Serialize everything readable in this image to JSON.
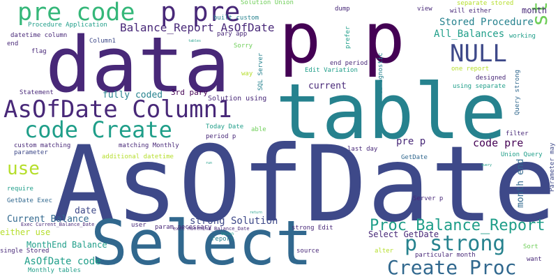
{
  "palette": {
    "dark_purple": "#440154",
    "indigo": "#482878",
    "blue": "#3e4989",
    "steel_blue": "#31688e",
    "teal_blue": "#26828e",
    "teal": "#1f9e89",
    "green": "#35b779",
    "light_green": "#6ece58",
    "lime": "#b5de2b",
    "yellow": "#fde725"
  },
  "words": [
    {
      "text": "AsOfDate",
      "tone": "blue"
    },
    {
      "text": "Select",
      "tone": "steel_blue"
    },
    {
      "text": "table",
      "tone": "teal_blue"
    },
    {
      "text": "data",
      "tone": "indigo"
    },
    {
      "text": "p p",
      "tone": "dark_purple"
    },
    {
      "text": "AsOfDate Column1",
      "tone": "indigo"
    },
    {
      "text": "p pre",
      "tone": "indigo"
    },
    {
      "text": "pre code",
      "tone": "green"
    },
    {
      "text": "code Create",
      "tone": "teal"
    },
    {
      "text": "Create Proc",
      "tone": "steel_blue"
    },
    {
      "text": "strong p",
      "tone": "light_green"
    },
    {
      "text": "p strong",
      "tone": "teal_blue"
    },
    {
      "text": "NULL",
      "tone": "blue"
    },
    {
      "text": "use",
      "tone": "lime"
    },
    {
      "text": "Proc Balance_Report",
      "tone": "teal"
    },
    {
      "text": "Balance_Report AsOfDate",
      "tone": "indigo"
    },
    {
      "text": "Stored Procedure",
      "tone": "teal_blue"
    },
    {
      "text": "All_Balances",
      "tone": "teal"
    },
    {
      "text": "AsOfDate code",
      "tone": "teal"
    },
    {
      "text": "Current Balance",
      "tone": "steel_blue"
    },
    {
      "text": "either use",
      "tone": "lime"
    },
    {
      "text": "MonthEnd Balance",
      "tone": "teal"
    },
    {
      "text": "Select GetDate",
      "tone": "indigo"
    },
    {
      "text": "code pre",
      "tone": "dark_purple"
    },
    {
      "text": "pre p",
      "tone": "indigo"
    },
    {
      "text": "strong Solution",
      "tone": "blue"
    },
    {
      "text": "fully coded",
      "tone": "teal_blue"
    },
    {
      "text": "current",
      "tone": "indigo"
    },
    {
      "text": "date",
      "tone": "blue"
    },
    {
      "text": "month end",
      "tone": "steel_blue"
    },
    {
      "text": "month",
      "tone": "indigo"
    },
    {
      "text": "3rd pary",
      "tone": "dark_purple"
    },
    {
      "text": "Solution using",
      "tone": "indigo"
    },
    {
      "text": "Procedure Application",
      "tone": "teal"
    },
    {
      "text": "built custom",
      "tone": "teal_blue"
    },
    {
      "text": "Solution Union",
      "tone": "light_green"
    },
    {
      "text": "datetime column",
      "tone": "indigo"
    },
    {
      "text": "Column1",
      "tone": "blue"
    },
    {
      "text": "pary app",
      "tone": "indigo"
    },
    {
      "text": "Sorry",
      "tone": "light_green"
    },
    {
      "text": "end",
      "tone": "indigo"
    },
    {
      "text": "flag",
      "tone": "indigo"
    },
    {
      "text": "SQL Server",
      "tone": "teal_blue"
    },
    {
      "text": "way",
      "tone": "lime"
    },
    {
      "text": "prefer",
      "tone": "teal"
    },
    {
      "text": "dump",
      "tone": "indigo"
    },
    {
      "text": "view",
      "tone": "indigo"
    },
    {
      "text": "separate stored",
      "tone": "lime"
    },
    {
      "text": "will either",
      "tone": "indigo"
    },
    {
      "text": "Edit Variation",
      "tone": "teal"
    },
    {
      "text": "end period",
      "tone": "indigo"
    },
    {
      "text": "db agnostic",
      "tone": "teal_blue"
    },
    {
      "text": "one report",
      "tone": "lime"
    },
    {
      "text": "designed",
      "tone": "indigo"
    },
    {
      "text": "using separate",
      "tone": "teal"
    },
    {
      "text": "working",
      "tone": "teal"
    },
    {
      "text": "Query strong",
      "tone": "steel_blue"
    },
    {
      "text": "filter",
      "tone": "indigo"
    },
    {
      "text": "Union Query",
      "tone": "teal"
    },
    {
      "text": "Parameter may",
      "tone": "blue"
    },
    {
      "text": "Statement",
      "tone": "indigo"
    },
    {
      "text": "Today Date",
      "tone": "teal"
    },
    {
      "text": "able",
      "tone": "light_green"
    },
    {
      "text": "period p",
      "tone": "indigo"
    },
    {
      "text": "custom matching",
      "tone": "indigo"
    },
    {
      "text": "parameter",
      "tone": "blue"
    },
    {
      "text": "matching Monthly",
      "tone": "indigo"
    },
    {
      "text": "additional datetime",
      "tone": "lime"
    },
    {
      "text": "last day",
      "tone": "indigo"
    },
    {
      "text": "GetDate",
      "tone": "steel_blue"
    },
    {
      "text": "require",
      "tone": "teal"
    },
    {
      "text": "GetDate Exec",
      "tone": "steel_blue"
    },
    {
      "text": "Server p",
      "tone": "indigo"
    },
    {
      "text": "user",
      "tone": "indigo"
    },
    {
      "text": "param necessary",
      "tone": "indigo"
    },
    {
      "text": "Exec Current_Balance_Date",
      "tone": "indigo"
    },
    {
      "text": "exec MonthEnd_Balance_Date",
      "tone": "indigo"
    },
    {
      "text": "strong Edit",
      "tone": "indigo"
    },
    {
      "text": "report",
      "tone": "teal_blue"
    },
    {
      "text": "source",
      "tone": "indigo"
    },
    {
      "text": "single Stored",
      "tone": "indigo"
    },
    {
      "text": "Monthly tables",
      "tone": "teal"
    },
    {
      "text": "alter",
      "tone": "lime"
    },
    {
      "text": "particular month",
      "tone": "indigo"
    },
    {
      "text": "Sort",
      "tone": "light_green"
    },
    {
      "text": "want",
      "tone": "indigo"
    },
    {
      "text": "Union",
      "tone": "teal"
    },
    {
      "text": "tables",
      "tone": "teal"
    },
    {
      "text": "run",
      "tone": "teal"
    },
    {
      "text": "query",
      "tone": "teal"
    },
    {
      "text": "return",
      "tone": "teal"
    }
  ]
}
